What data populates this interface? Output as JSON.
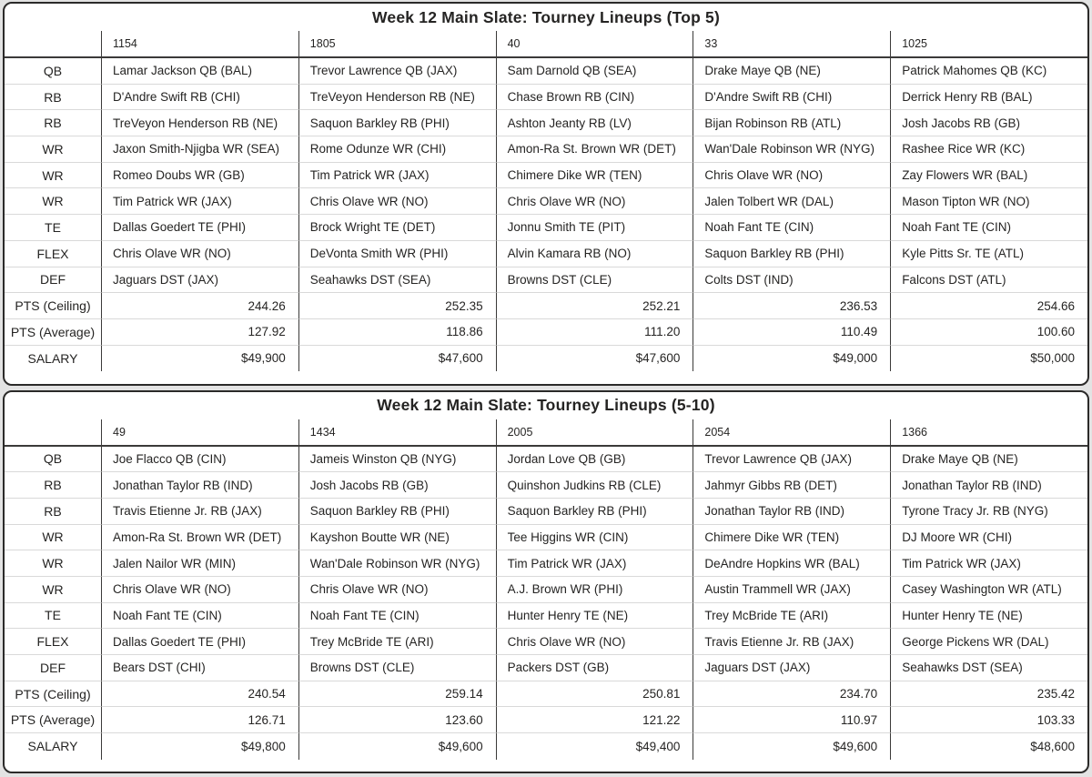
{
  "page_background": "#e3e3e3",
  "colors": {
    "panel_border": "#2b2a29",
    "column_divider": "#3b3a39",
    "row_divider": "#d9d9d9",
    "text": "#252423",
    "panel_background": "#ffffff"
  },
  "chart_data": [
    {
      "type": "table",
      "title": "Week 12 Main Slate: Tourney Lineups (Top 5)",
      "columns": [
        "1154",
        "1805",
        "40",
        "33",
        "1025"
      ],
      "rows": [
        {
          "label": "QB",
          "cells": [
            "Lamar Jackson QB (BAL)",
            "Trevor Lawrence QB (JAX)",
            "Sam Darnold QB (SEA)",
            "Drake Maye QB (NE)",
            "Patrick Mahomes QB (KC)"
          ]
        },
        {
          "label": "RB",
          "cells": [
            "D'Andre Swift RB (CHI)",
            "TreVeyon Henderson RB (NE)",
            "Chase Brown RB (CIN)",
            "D'Andre Swift RB (CHI)",
            "Derrick Henry RB (BAL)"
          ]
        },
        {
          "label": "RB",
          "cells": [
            "TreVeyon Henderson RB (NE)",
            "Saquon Barkley RB (PHI)",
            "Ashton Jeanty RB (LV)",
            "Bijan Robinson RB (ATL)",
            "Josh Jacobs RB (GB)"
          ]
        },
        {
          "label": "WR",
          "cells": [
            "Jaxon Smith-Njigba WR (SEA)",
            "Rome Odunze WR (CHI)",
            "Amon-Ra St. Brown WR (DET)",
            "Wan'Dale Robinson WR (NYG)",
            "Rashee Rice WR (KC)"
          ]
        },
        {
          "label": "WR",
          "cells": [
            "Romeo Doubs WR (GB)",
            "Tim Patrick WR (JAX)",
            "Chimere Dike WR (TEN)",
            "Chris Olave WR (NO)",
            "Zay Flowers WR (BAL)"
          ]
        },
        {
          "label": "WR",
          "cells": [
            "Tim Patrick WR (JAX)",
            "Chris Olave WR (NO)",
            "Chris Olave WR (NO)",
            "Jalen Tolbert WR (DAL)",
            "Mason Tipton WR (NO)"
          ]
        },
        {
          "label": "TE",
          "cells": [
            "Dallas Goedert TE (PHI)",
            "Brock Wright TE (DET)",
            "Jonnu Smith TE (PIT)",
            "Noah Fant TE (CIN)",
            "Noah Fant TE (CIN)"
          ]
        },
        {
          "label": "FLEX",
          "cells": [
            "Chris Olave WR (NO)",
            "DeVonta Smith WR (PHI)",
            "Alvin Kamara RB (NO)",
            "Saquon Barkley RB (PHI)",
            "Kyle Pitts Sr. TE (ATL)"
          ]
        },
        {
          "label": "DEF",
          "cells": [
            "Jaguars DST (JAX)",
            "Seahawks DST (SEA)",
            "Browns DST (CLE)",
            "Colts DST (IND)",
            "Falcons DST (ATL)"
          ]
        },
        {
          "label": "PTS (Ceiling)",
          "cells": [
            "244.26",
            "252.35",
            "252.21",
            "236.53",
            "254.66"
          ]
        },
        {
          "label": "PTS (Average)",
          "cells": [
            "127.92",
            "118.86",
            "111.20",
            "110.49",
            "100.60"
          ]
        },
        {
          "label": "SALARY",
          "cells": [
            "$49,900",
            "$47,600",
            "$47,600",
            "$49,000",
            "$50,000"
          ]
        }
      ]
    },
    {
      "type": "table",
      "title": "Week 12 Main Slate: Tourney Lineups (5-10)",
      "columns": [
        "49",
        "1434",
        "2005",
        "2054",
        "1366"
      ],
      "rows": [
        {
          "label": "QB",
          "cells": [
            "Joe Flacco QB (CIN)",
            "Jameis Winston QB (NYG)",
            "Jordan Love QB (GB)",
            "Trevor Lawrence QB (JAX)",
            "Drake Maye QB (NE)"
          ]
        },
        {
          "label": "RB",
          "cells": [
            "Jonathan Taylor RB (IND)",
            "Josh Jacobs RB (GB)",
            "Quinshon Judkins RB (CLE)",
            "Jahmyr Gibbs RB (DET)",
            "Jonathan Taylor RB (IND)"
          ]
        },
        {
          "label": "RB",
          "cells": [
            "Travis Etienne Jr. RB (JAX)",
            "Saquon Barkley RB (PHI)",
            "Saquon Barkley RB (PHI)",
            "Jonathan Taylor RB (IND)",
            "Tyrone Tracy Jr. RB (NYG)"
          ]
        },
        {
          "label": "WR",
          "cells": [
            "Amon-Ra St. Brown WR (DET)",
            "Kayshon Boutte WR (NE)",
            "Tee Higgins WR (CIN)",
            "Chimere Dike WR (TEN)",
            "DJ Moore WR (CHI)"
          ]
        },
        {
          "label": "WR",
          "cells": [
            "Jalen Nailor WR (MIN)",
            "Wan'Dale Robinson WR (NYG)",
            "Tim Patrick WR (JAX)",
            "DeAndre Hopkins WR (BAL)",
            "Tim Patrick WR (JAX)"
          ]
        },
        {
          "label": "WR",
          "cells": [
            "Chris Olave WR (NO)",
            "Chris Olave WR (NO)",
            "A.J. Brown WR (PHI)",
            "Austin Trammell WR (JAX)",
            "Casey Washington WR (ATL)"
          ]
        },
        {
          "label": "TE",
          "cells": [
            "Noah Fant TE (CIN)",
            "Noah Fant TE (CIN)",
            "Hunter Henry TE (NE)",
            "Trey McBride TE (ARI)",
            "Hunter Henry TE (NE)"
          ]
        },
        {
          "label": "FLEX",
          "cells": [
            "Dallas Goedert TE (PHI)",
            "Trey McBride TE (ARI)",
            "Chris Olave WR (NO)",
            "Travis Etienne Jr. RB (JAX)",
            "George Pickens WR (DAL)"
          ]
        },
        {
          "label": "DEF",
          "cells": [
            "Bears DST (CHI)",
            "Browns DST (CLE)",
            "Packers DST (GB)",
            "Jaguars DST (JAX)",
            "Seahawks DST (SEA)"
          ]
        },
        {
          "label": "PTS (Ceiling)",
          "cells": [
            "240.54",
            "259.14",
            "250.81",
            "234.70",
            "235.42"
          ]
        },
        {
          "label": "PTS (Average)",
          "cells": [
            "126.71",
            "123.60",
            "121.22",
            "110.97",
            "103.33"
          ]
        },
        {
          "label": "SALARY",
          "cells": [
            "$49,800",
            "$49,600",
            "$49,400",
            "$49,600",
            "$48,600"
          ]
        }
      ]
    }
  ]
}
